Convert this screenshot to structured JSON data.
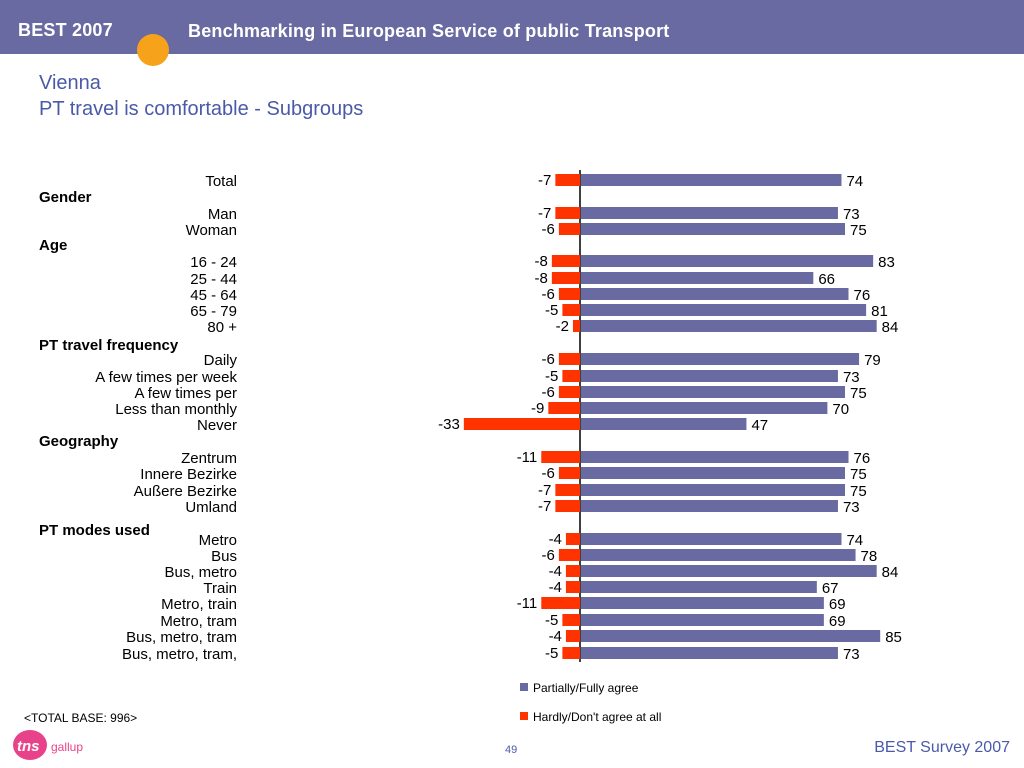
{
  "header": {
    "brand": "BEST 2007",
    "title": "Benchmarking in European Service of public Transport"
  },
  "page": {
    "heading": "Vienna",
    "subheading": "PT travel is comfortable - Subgroups",
    "base_note": "<TOTAL BASE: 996>",
    "logo_mark": "tns",
    "logo_word": "gallup",
    "page_number": "49",
    "footer": "BEST Survey 2007"
  },
  "colors": {
    "header_bg": "#6a6aa2",
    "positive_bar": "#6a6aa2",
    "negative_bar": "#ff3300",
    "heading_text": "#4a5aa8",
    "accent_orange": "#f7a21b",
    "logo_pink": "#e8438a"
  },
  "chart_data": {
    "type": "bar",
    "orientation": "horizontal-diverging",
    "legend": [
      "Partially/Fully agree",
      "Hardly/Don't agree at all"
    ],
    "legend_placement": "bottom-right",
    "grid": false,
    "series": [
      {
        "name": "Partially/Fully agree",
        "color": "#6a6aa2"
      },
      {
        "name": "Hardly/Don't agree at all",
        "color": "#ff3300"
      }
    ],
    "groups": [
      "Gender",
      "Age",
      "PT travel frequency",
      "Geography",
      "PT modes used"
    ],
    "rows": [
      {
        "label": "Total",
        "neg": -7,
        "pos": 74
      },
      {
        "group": "Gender"
      },
      {
        "label": "Man",
        "neg": -7,
        "pos": 73
      },
      {
        "label": "Woman",
        "neg": -6,
        "pos": 75
      },
      {
        "group": "Age"
      },
      {
        "label": "16 - 24",
        "neg": -8,
        "pos": 83
      },
      {
        "label": "25 - 44",
        "neg": -8,
        "pos": 66
      },
      {
        "label": "45 - 64",
        "neg": -6,
        "pos": 76
      },
      {
        "label": "65 - 79",
        "neg": -5,
        "pos": 81
      },
      {
        "label": "80 +",
        "neg": -2,
        "pos": 84
      },
      {
        "group": "PT travel frequency"
      },
      {
        "label": "Daily",
        "neg": -6,
        "pos": 79
      },
      {
        "label": "A few times per week",
        "neg": -5,
        "pos": 73
      },
      {
        "label": "A few times per",
        "neg": -6,
        "pos": 75
      },
      {
        "label": "Less than monthly",
        "neg": -9,
        "pos": 70
      },
      {
        "label": "Never",
        "neg": -33,
        "pos": 47
      },
      {
        "group": "Geography"
      },
      {
        "label": "Zentrum",
        "neg": -11,
        "pos": 76
      },
      {
        "label": "Innere Bezirke",
        "neg": -6,
        "pos": 75
      },
      {
        "label": "Außere Bezirke",
        "neg": -7,
        "pos": 75
      },
      {
        "label": "Umland",
        "neg": -7,
        "pos": 73
      },
      {
        "group": "PT modes used"
      },
      {
        "label": "Metro",
        "neg": -4,
        "pos": 74
      },
      {
        "label": "Bus",
        "neg": -6,
        "pos": 78
      },
      {
        "label": "Bus, metro",
        "neg": -4,
        "pos": 84
      },
      {
        "label": "Train",
        "neg": -4,
        "pos": 67
      },
      {
        "label": "Metro, train",
        "neg": -11,
        "pos": 69
      },
      {
        "label": "Metro, tram",
        "neg": -5,
        "pos": 69
      },
      {
        "label": "Bus, metro, tram",
        "neg": -4,
        "pos": 85
      },
      {
        "label": "Bus, metro, tram,",
        "neg": -5,
        "pos": 73
      }
    ]
  }
}
